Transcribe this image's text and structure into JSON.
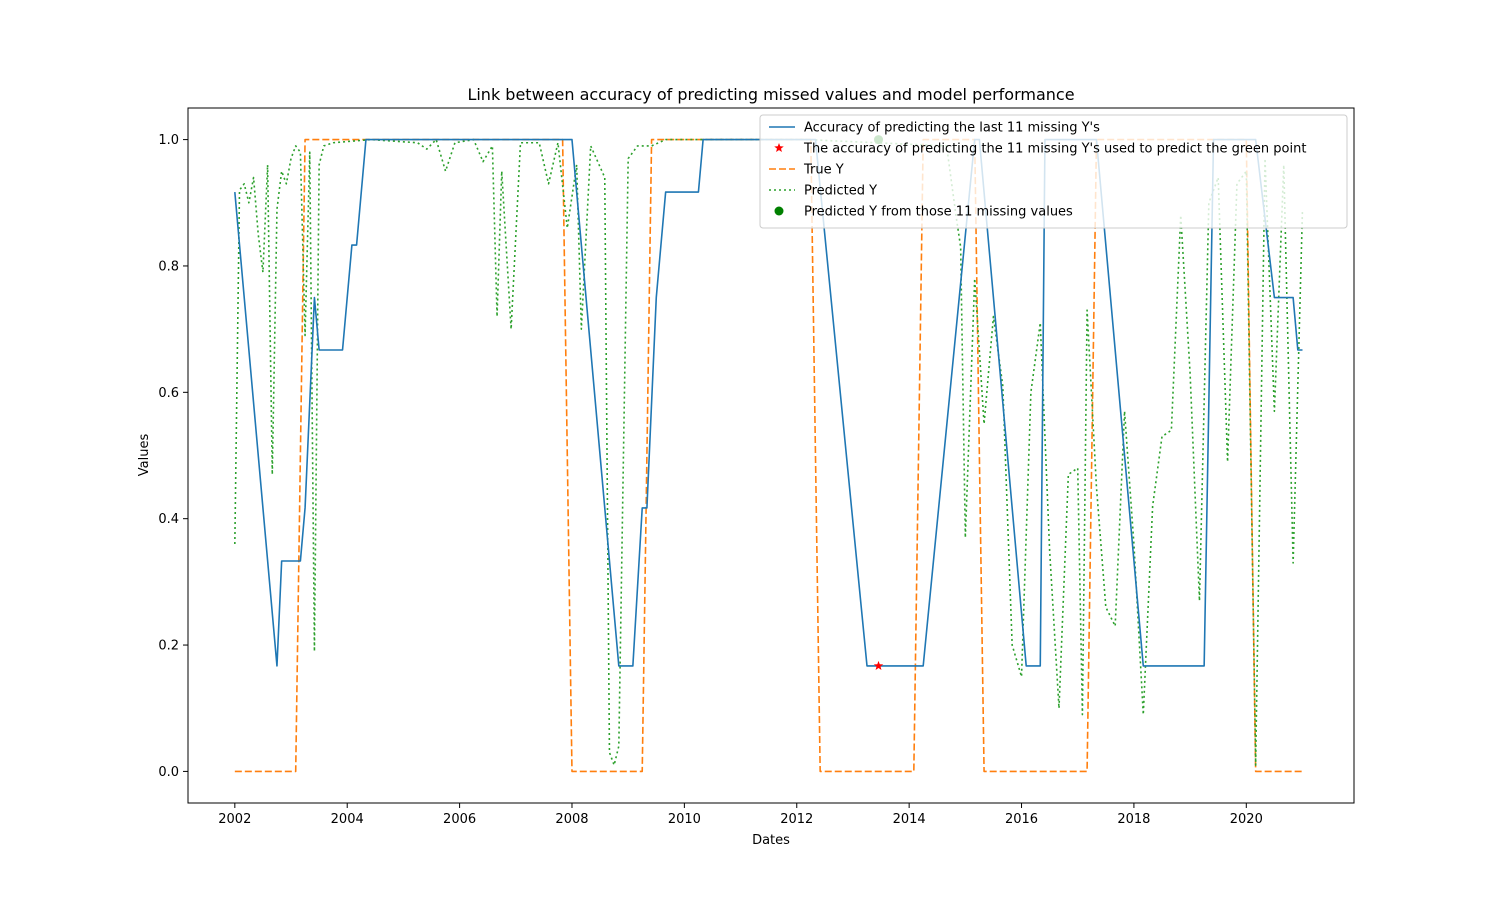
{
  "chart_data": {
    "type": "line",
    "title": "Link between accuracy of predicting missed values and model performance",
    "xlabel": "Dates",
    "ylabel": "Values",
    "xlim": [
      "2001-03-01",
      "2021-12-01"
    ],
    "ylim": [
      -0.05,
      1.05
    ],
    "x_ticks": [
      "2002",
      "2004",
      "2006",
      "2008",
      "2010",
      "2012",
      "2014",
      "2016",
      "2018",
      "2020"
    ],
    "y_ticks": [
      "0.0",
      "0.2",
      "0.4",
      "0.6",
      "0.8",
      "1.0"
    ],
    "grid": false,
    "legend_position": "top-right",
    "series": [
      {
        "name": "Accuracy of predicting the last 11 missing Y's",
        "style": "solid",
        "color": "#1f77b4",
        "points": [
          [
            "2002-01",
            0.917
          ],
          [
            "2002-10",
            0.167
          ],
          [
            "2002-11",
            0.333
          ],
          [
            "2003-03",
            0.333
          ],
          [
            "2003-04",
            0.417
          ],
          [
            "2003-06",
            0.75
          ],
          [
            "2003-07",
            0.667
          ],
          [
            "2003-12",
            0.667
          ],
          [
            "2004-02",
            0.833
          ],
          [
            "2004-03",
            0.833
          ],
          [
            "2004-05",
            1.0
          ],
          [
            "2008-01",
            1.0
          ],
          [
            "2008-11",
            0.167
          ],
          [
            "2009-02",
            0.167
          ],
          [
            "2009-04",
            0.417
          ],
          [
            "2009-05",
            0.417
          ],
          [
            "2009-07",
            0.75
          ],
          [
            "2009-09",
            0.917
          ],
          [
            "2010-04",
            0.917
          ],
          [
            "2010-05",
            1.0
          ],
          [
            "2012-05",
            1.0
          ],
          [
            "2013-04",
            0.167
          ],
          [
            "2014-04",
            0.167
          ],
          [
            "2015-03",
            1.0
          ],
          [
            "2015-04",
            1.0
          ],
          [
            "2016-02",
            0.167
          ],
          [
            "2016-05",
            0.167
          ],
          [
            "2016-06",
            1.0
          ],
          [
            "2017-05",
            1.0
          ],
          [
            "2018-03",
            0.167
          ],
          [
            "2019-04",
            0.167
          ],
          [
            "2019-06",
            1.0
          ],
          [
            "2020-03",
            1.0
          ],
          [
            "2020-07",
            0.75
          ],
          [
            "2020-11",
            0.75
          ],
          [
            "2020-12",
            0.667
          ],
          [
            "2021-01",
            0.667
          ]
        ]
      },
      {
        "name": "The accuracy of predicting the 11 missing Y's used to predict the green point",
        "style": "marker-star",
        "color": "#ff0000",
        "points": [
          [
            "2013-06-15",
            0.167
          ]
        ]
      },
      {
        "name": "True Y",
        "style": "dashed",
        "color": "#ff7f0e",
        "points": [
          [
            "2002-01",
            0.0
          ],
          [
            "2003-02",
            0.0
          ],
          [
            "2003-04",
            1.0
          ],
          [
            "2007-11",
            1.0
          ],
          [
            "2008-01",
            0.0
          ],
          [
            "2009-04",
            0.0
          ],
          [
            "2009-06",
            1.0
          ],
          [
            "2012-04",
            1.0
          ],
          [
            "2012-06",
            0.0
          ],
          [
            "2014-02",
            0.0
          ],
          [
            "2014-04",
            1.0
          ],
          [
            "2015-03",
            1.0
          ],
          [
            "2015-05",
            0.0
          ],
          [
            "2017-03",
            0.0
          ],
          [
            "2017-05",
            1.0
          ],
          [
            "2020-01",
            1.0
          ],
          [
            "2020-03",
            0.0
          ],
          [
            "2021-01",
            0.0
          ]
        ]
      },
      {
        "name": "Predicted Y",
        "style": "dotted",
        "color": "#2ca02c",
        "points": [
          [
            "2002-01",
            0.36
          ],
          [
            "2002-02",
            0.92
          ],
          [
            "2002-03",
            0.93
          ],
          [
            "2002-04",
            0.9
          ],
          [
            "2002-05",
            0.94
          ],
          [
            "2002-06",
            0.85
          ],
          [
            "2002-07",
            0.79
          ],
          [
            "2002-08",
            0.96
          ],
          [
            "2002-09",
            0.47
          ],
          [
            "2002-10",
            0.89
          ],
          [
            "2002-11",
            0.95
          ],
          [
            "2002-12",
            0.93
          ],
          [
            "2003-01",
            0.97
          ],
          [
            "2003-02",
            0.99
          ],
          [
            "2003-03",
            0.98
          ],
          [
            "2003-04",
            0.69
          ],
          [
            "2003-05",
            0.98
          ],
          [
            "2003-06",
            0.19
          ],
          [
            "2003-07",
            0.96
          ],
          [
            "2003-08",
            0.99
          ],
          [
            "2003-10",
            0.995
          ],
          [
            "2004-06",
            1.0
          ],
          [
            "2005-04",
            0.995
          ],
          [
            "2005-06",
            0.985
          ],
          [
            "2005-08",
            1.0
          ],
          [
            "2005-10",
            0.95
          ],
          [
            "2005-12",
            0.995
          ],
          [
            "2006-04",
            1.0
          ],
          [
            "2006-06",
            0.965
          ],
          [
            "2006-08",
            0.99
          ],
          [
            "2006-09",
            0.72
          ],
          [
            "2006-10",
            0.95
          ],
          [
            "2006-12",
            0.7
          ],
          [
            "2007-02",
            0.995
          ],
          [
            "2007-06",
            0.995
          ],
          [
            "2007-08",
            0.93
          ],
          [
            "2007-10",
            0.995
          ],
          [
            "2007-12",
            0.86
          ],
          [
            "2008-02",
            0.96
          ],
          [
            "2008-03",
            0.7
          ],
          [
            "2008-05",
            0.99
          ],
          [
            "2008-08",
            0.94
          ],
          [
            "2008-09",
            0.03
          ],
          [
            "2008-10",
            0.01
          ],
          [
            "2008-11",
            0.04
          ],
          [
            "2009-01",
            0.97
          ],
          [
            "2009-03",
            0.99
          ],
          [
            "2009-06",
            0.99
          ],
          [
            "2009-09",
            1.0
          ],
          [
            "2012-03",
            1.0
          ],
          [
            "2014-09",
            0.99
          ],
          [
            "2014-11",
            0.88
          ],
          [
            "2014-12",
            0.83
          ],
          [
            "2015-01",
            0.37
          ],
          [
            "2015-03",
            0.78
          ],
          [
            "2015-05",
            0.55
          ],
          [
            "2015-07",
            0.72
          ],
          [
            "2015-09",
            0.61
          ],
          [
            "2015-11",
            0.2
          ],
          [
            "2016-01",
            0.15
          ],
          [
            "2016-03",
            0.6
          ],
          [
            "2016-05",
            0.71
          ],
          [
            "2016-07",
            0.35
          ],
          [
            "2016-09",
            0.1
          ],
          [
            "2016-11",
            0.47
          ],
          [
            "2017-01",
            0.48
          ],
          [
            "2017-02",
            0.09
          ],
          [
            "2017-03",
            0.73
          ],
          [
            "2017-05",
            0.45
          ],
          [
            "2017-07",
            0.26
          ],
          [
            "2017-09",
            0.23
          ],
          [
            "2017-11",
            0.57
          ],
          [
            "2018-01",
            0.36
          ],
          [
            "2018-03",
            0.09
          ],
          [
            "2018-05",
            0.42
          ],
          [
            "2018-07",
            0.53
          ],
          [
            "2018-09",
            0.54
          ],
          [
            "2018-11",
            0.88
          ],
          [
            "2019-01",
            0.63
          ],
          [
            "2019-03",
            0.27
          ],
          [
            "2019-05",
            0.9
          ],
          [
            "2019-07",
            0.94
          ],
          [
            "2019-09",
            0.49
          ],
          [
            "2019-11",
            0.93
          ],
          [
            "2020-01",
            0.95
          ],
          [
            "2020-03",
            0.01
          ],
          [
            "2020-05",
            0.97
          ],
          [
            "2020-07",
            0.57
          ],
          [
            "2020-09",
            0.96
          ],
          [
            "2020-11",
            0.33
          ],
          [
            "2021-01",
            0.89
          ]
        ]
      },
      {
        "name": "Predicted Y from those 11 missing values",
        "style": "marker-circle",
        "color": "#008000",
        "points": [
          [
            "2013-06-15",
            1.0
          ]
        ]
      }
    ]
  }
}
